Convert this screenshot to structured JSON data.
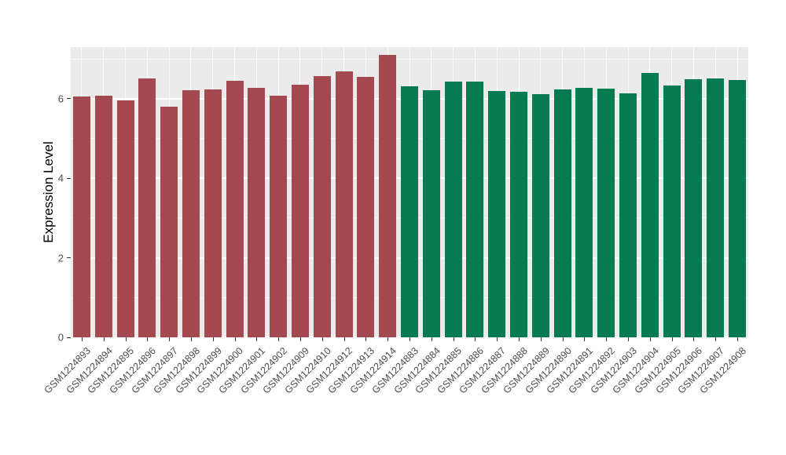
{
  "chart_data": {
    "type": "bar",
    "title": "",
    "xlabel": "",
    "ylabel": "Expression Level",
    "ylim": [
      0,
      7.3
    ],
    "yticks": [
      0,
      2,
      4,
      6
    ],
    "yticks_minor": [
      1,
      3,
      5,
      7
    ],
    "grid": "on",
    "legend": "none",
    "panel_background": "#EBEBEB",
    "categories": [
      "GSM1224893",
      "GSM1224894",
      "GSM1224895",
      "GSM1224896",
      "GSM1224897",
      "GSM1224898",
      "GSM1224899",
      "GSM1224900",
      "GSM1224901",
      "GSM1224902",
      "GSM1224909",
      "GSM1224910",
      "GSM1224912",
      "GSM1224913",
      "GSM1224914",
      "GSM1224883",
      "GSM1224884",
      "GSM1224885",
      "GSM1224886",
      "GSM1224887",
      "GSM1224888",
      "GSM1224889",
      "GSM1224890",
      "GSM1224891",
      "GSM1224892",
      "GSM1224903",
      "GSM1224904",
      "GSM1224905",
      "GSM1224906",
      "GSM1224907",
      "GSM1224908"
    ],
    "values": [
      6.05,
      6.07,
      5.96,
      6.51,
      5.8,
      6.21,
      6.24,
      6.46,
      6.27,
      6.07,
      6.36,
      6.58,
      6.68,
      6.55,
      7.1,
      6.32,
      6.22,
      6.44,
      6.44,
      6.2,
      6.17,
      6.11,
      6.24,
      6.28,
      6.26,
      6.14,
      6.64,
      6.33,
      6.5,
      6.52,
      6.47
    ],
    "bar_groups": [
      0,
      0,
      0,
      0,
      0,
      0,
      0,
      0,
      0,
      0,
      0,
      0,
      0,
      0,
      0,
      1,
      1,
      1,
      1,
      1,
      1,
      1,
      1,
      1,
      1,
      1,
      1,
      1,
      1,
      1,
      1
    ],
    "group_colors": [
      "#A4494F",
      "#067A50"
    ]
  }
}
